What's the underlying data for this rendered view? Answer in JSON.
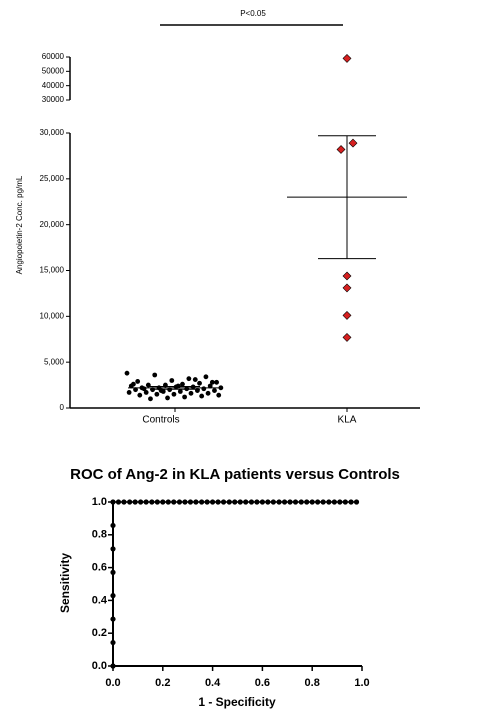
{
  "chart_data": [
    {
      "type": "strip",
      "annotation": "P<0.05",
      "ylabel": "Angiopoietin-2 Conc. pg/mL",
      "categories": [
        "Controls",
        "KLA"
      ],
      "groups": [
        {
          "color": "#000000",
          "mean": 2200,
          "error": 150,
          "values": [
            3800,
            3400,
            3200,
            3000,
            3600,
            2900,
            2800,
            2700,
            2600,
            2500,
            2500,
            2400,
            2400,
            2300,
            2300,
            2200,
            2200,
            2200,
            2100,
            2100,
            2000,
            2000,
            2000,
            1900,
            1900,
            1800,
            1800,
            1700,
            1700,
            1600,
            1600,
            1500,
            1500,
            1400,
            1400,
            1300,
            1200,
            1100,
            1000,
            2600,
            2800,
            3100,
            2400,
            1900,
            2100
          ]
        },
        {
          "color": "#d62020",
          "mean": 23000,
          "error": 6700,
          "values": [
            59000,
            28900,
            28200,
            14400,
            13100,
            10100,
            7700
          ]
        }
      ],
      "ylim": [
        0,
        30000
      ],
      "yticks": [
        0,
        {
          "value": 5000,
          "label": "5,000"
        },
        {
          "value": 10000,
          "label": "10,000"
        },
        {
          "value": 15000,
          "label": "15,000"
        },
        {
          "value": 20000,
          "label": "20,000"
        },
        {
          "value": 25000,
          "label": "25,000"
        },
        {
          "value": 30000,
          "label": "30,000"
        }
      ],
      "upper_ylim": [
        30000,
        60000
      ],
      "upper_yticks": [
        30000,
        40000,
        50000,
        60000
      ]
    },
    {
      "type": "line",
      "title": "ROC of Ang-2 in KLA patients versus Controls",
      "xlabel": "1 - Specificity",
      "ylabel": "Sensitivity",
      "color": "#000000",
      "x": [
        0,
        0,
        0,
        0,
        0,
        0,
        0,
        0,
        0.022,
        0.044,
        0.067,
        0.089,
        0.111,
        0.133,
        0.156,
        0.178,
        0.2,
        0.222,
        0.244,
        0.267,
        0.289,
        0.311,
        0.333,
        0.356,
        0.378,
        0.4,
        0.422,
        0.444,
        0.467,
        0.489,
        0.511,
        0.533,
        0.556,
        0.578,
        0.6,
        0.622,
        0.644,
        0.667,
        0.689,
        0.711,
        0.733,
        0.756,
        0.778,
        0.8,
        0.822,
        0.844,
        0.867,
        0.889,
        0.911,
        0.933,
        0.956,
        0.978
      ],
      "values": [
        0,
        0.143,
        0.286,
        0.429,
        0.571,
        0.714,
        0.857,
        1,
        1,
        1,
        1,
        1,
        1,
        1,
        1,
        1,
        1,
        1,
        1,
        1,
        1,
        1,
        1,
        1,
        1,
        1,
        1,
        1,
        1,
        1,
        1,
        1,
        1,
        1,
        1,
        1,
        1,
        1,
        1,
        1,
        1,
        1,
        1,
        1,
        1,
        1,
        1,
        1,
        1,
        1,
        1,
        1
      ],
      "xlim": [
        0,
        1
      ],
      "ylim": [
        0,
        1
      ],
      "xticks": [
        {
          "value": 0,
          "label": "0.0"
        },
        0.2,
        0.4,
        0.6,
        0.8,
        {
          "value": 1,
          "label": "1.0"
        }
      ],
      "yticks": [
        {
          "value": 0,
          "label": "0.0"
        },
        0.2,
        0.4,
        0.6,
        0.8,
        {
          "value": 1,
          "label": "1.0"
        }
      ]
    }
  ]
}
